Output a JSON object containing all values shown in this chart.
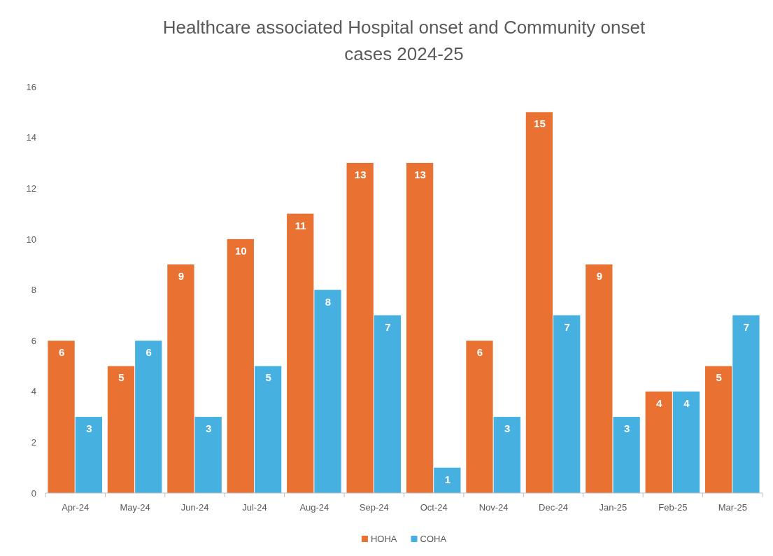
{
  "chart_data": {
    "type": "bar",
    "title": "Healthcare associated Hospital onset and Community onset cases 2024-25",
    "categories": [
      "Apr-24",
      "May-24",
      "Jun-24",
      "Jul-24",
      "Aug-24",
      "Sep-24",
      "Oct-24",
      "Nov-24",
      "Dec-24",
      "Jan-25",
      "Feb-25",
      "Mar-25"
    ],
    "series": [
      {
        "name": "HOHA",
        "color": "#e97132",
        "values": [
          6,
          5,
          9,
          10,
          11,
          13,
          13,
          6,
          15,
          9,
          4,
          5
        ]
      },
      {
        "name": "COHA",
        "color": "#46b1e1",
        "values": [
          3,
          6,
          3,
          5,
          8,
          7,
          1,
          3,
          7,
          3,
          4,
          7
        ]
      }
    ],
    "ylim": [
      0,
      16
    ],
    "yticks": [
      0,
      2,
      4,
      6,
      8,
      10,
      12,
      14,
      16
    ],
    "grid": false,
    "legend": "bottom",
    "data_labels": true
  }
}
